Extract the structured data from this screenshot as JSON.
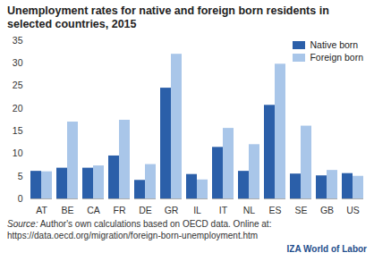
{
  "chart_data": {
    "type": "bar",
    "title": "Unemployment rates for native and foreign born residents in selected countries, 2015",
    "categories": [
      "AT",
      "BE",
      "CA",
      "FR",
      "DE",
      "GR",
      "IL",
      "IT",
      "NL",
      "ES",
      "SE",
      "GB",
      "US"
    ],
    "series": [
      {
        "name": "Native born",
        "color": "#2b5fa9",
        "values": [
          6.1,
          6.8,
          6.8,
          9.5,
          4.1,
          24.5,
          5.4,
          11.4,
          6.1,
          20.7,
          5.5,
          5.1,
          5.6
        ]
      },
      {
        "name": "Foreign born",
        "color": "#a9c6e9",
        "values": [
          6.0,
          17.0,
          7.3,
          17.4,
          7.6,
          32.0,
          4.2,
          15.6,
          12.0,
          29.8,
          16.1,
          6.3,
          5.0
        ]
      }
    ],
    "ylim": [
      0,
      35
    ],
    "yticks": [
      0,
      5,
      10,
      15,
      20,
      25,
      30,
      35
    ],
    "grid": false,
    "legend": "top-right",
    "source_label": "Source:",
    "source": "Author's own calculations based on OECD data. Online at: https://data.oecd.org/migration/foreign-born-unemployment.htm",
    "publisher": "IZA World of Labor"
  }
}
